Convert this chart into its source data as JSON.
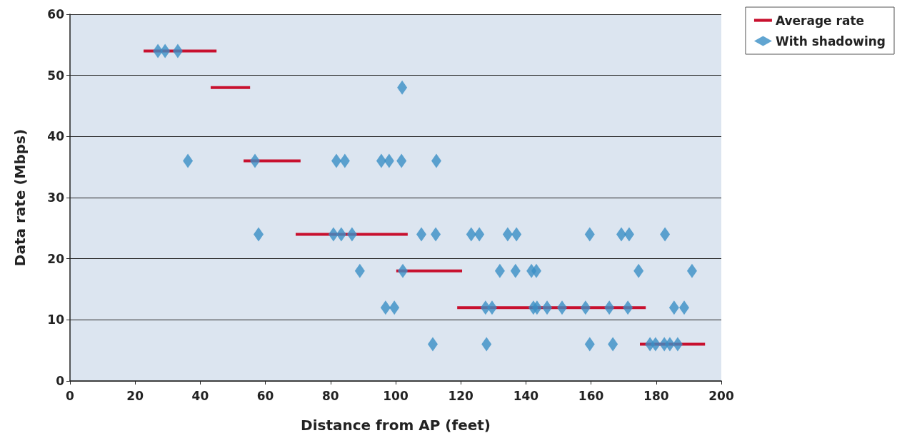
{
  "chart_data": {
    "type": "scatter",
    "xlabel": "Distance from AP (feet)",
    "ylabel": "Data rate (Mbps)",
    "xlim": [
      0,
      200
    ],
    "xticks": [
      0,
      20,
      40,
      60,
      80,
      100,
      120,
      140,
      160,
      180,
      200
    ],
    "ylim": [
      0,
      60
    ],
    "yticks": [
      0,
      10,
      20,
      30,
      40,
      50,
      60
    ],
    "grid": "y",
    "legend": "top right",
    "series": [
      {
        "name": "Average rate",
        "type": "line",
        "marker": "none",
        "color": "#c8102e",
        "x": [
          22.6,
          45.0
        ],
        "values": [
          54,
          54
        ]
      },
      {
        "type": "line",
        "marker": "none",
        "color": "#c8102e",
        "x": [
          43.2,
          55.3
        ],
        "values": [
          48,
          48
        ]
      },
      {
        "type": "line",
        "marker": "none",
        "color": "#c8102e",
        "x": [
          53.3,
          70.8
        ],
        "values": [
          36,
          36
        ]
      },
      {
        "type": "line",
        "marker": "none",
        "color": "#c8102e",
        "x": [
          69.3,
          103.7
        ],
        "values": [
          24,
          24
        ]
      },
      {
        "type": "line",
        "marker": "none",
        "color": "#c8102e",
        "x": [
          100.2,
          120.4
        ],
        "values": [
          18,
          18
        ]
      },
      {
        "type": "line",
        "marker": "none",
        "color": "#c8102e",
        "x": [
          118.9,
          176.8
        ],
        "values": [
          12,
          12
        ]
      },
      {
        "type": "line",
        "marker": "none",
        "color": "#c8102e",
        "x": [
          175.0,
          195.0
        ],
        "values": [
          6,
          6
        ]
      },
      {
        "name": "With shadowing",
        "marker": "diamond",
        "color": "#3a8fc6",
        "x": [
          27.0,
          29.2,
          33.1,
          102.0,
          36.2,
          56.8,
          81.8,
          84.4,
          95.6,
          98.0,
          101.8,
          112.5,
          57.9,
          80.9,
          83.3,
          86.6,
          107.9,
          112.3,
          123.2,
          125.7,
          134.4,
          137.1,
          159.6,
          169.3,
          171.7,
          182.7,
          89.0,
          102.2,
          132.0,
          136.8,
          141.7,
          143.2,
          174.6,
          191.0,
          96.9,
          99.6,
          127.6,
          129.6,
          142.3,
          143.4,
          146.5,
          151.1,
          158.3,
          165.6,
          171.3,
          185.5,
          188.6,
          111.4,
          127.9,
          159.6,
          166.7,
          178.1,
          179.8,
          182.5,
          184.2,
          186.6
        ],
        "values": [
          54,
          54,
          54,
          48,
          36,
          36,
          36,
          36,
          36,
          36,
          36,
          36,
          24,
          24,
          24,
          24,
          24,
          24,
          24,
          24,
          24,
          24,
          24,
          24,
          24,
          24,
          18,
          18,
          18,
          18,
          18,
          18,
          18,
          18,
          12,
          12,
          12,
          12,
          12,
          12,
          12,
          12,
          12,
          12,
          12,
          12,
          12,
          6,
          6,
          6,
          6,
          6,
          6,
          6,
          6,
          6
        ]
      }
    ]
  }
}
